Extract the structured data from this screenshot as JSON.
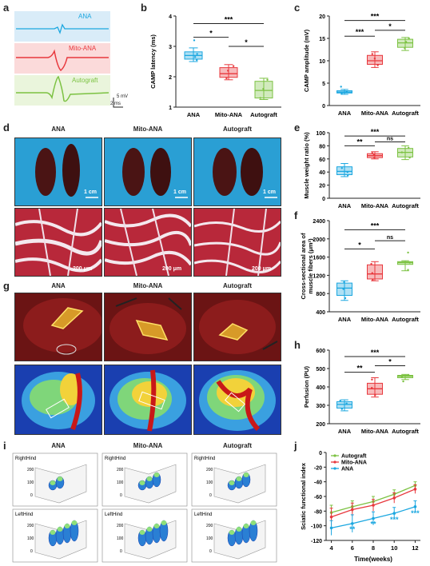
{
  "panels": {
    "a": "a",
    "b": "b",
    "c": "c",
    "d": "d",
    "e": "e",
    "f": "f",
    "g": "g",
    "h": "h",
    "i": "i",
    "j": "j"
  },
  "panel_a": {
    "traces": [
      {
        "label": "ANA",
        "color": "#1ba7e0",
        "bg": "#d9ecf8"
      },
      {
        "label": "Mito-ANA",
        "color": "#e8383d",
        "bg": "#fbdada"
      },
      {
        "label": "Autograft",
        "color": "#7cc242",
        "bg": "#eaf5dc"
      }
    ],
    "scale_v": "5 mV",
    "scale_t": "2 ms"
  },
  "group_labels": [
    "ANA",
    "Mito-ANA",
    "Autograft"
  ],
  "photo_scale": {
    "cm": "1 cm",
    "um": "200 μm"
  },
  "panel_i": {
    "right": "RightHind",
    "left": "LeftHind"
  },
  "colors": {
    "ana": "#1ba7e0",
    "mito": "#e8383d",
    "auto": "#7cc242"
  },
  "chart_data": [
    {
      "id": "b",
      "type": "box",
      "ylabel": "CAMP latency (ms)",
      "categories": [
        "ANA",
        "Mito-ANA",
        "Autograft"
      ],
      "ylim": [
        1,
        4
      ],
      "yticks": [
        1,
        2,
        3,
        4
      ],
      "boxes": [
        {
          "min": 2.5,
          "q1": 2.58,
          "median": 2.7,
          "q3": 2.82,
          "max": 2.95,
          "points": [
            2.55,
            2.65,
            2.75,
            3.2
          ]
        },
        {
          "min": 1.9,
          "q1": 1.98,
          "median": 2.1,
          "q3": 2.3,
          "max": 2.4,
          "points": [
            1.95,
            2.2,
            2.35
          ]
        },
        {
          "min": 1.25,
          "q1": 1.3,
          "median": 1.55,
          "q3": 1.85,
          "max": 1.95,
          "points": [
            1.3,
            1.6,
            1.9
          ]
        }
      ],
      "sig": [
        {
          "from": 0,
          "to": 2,
          "label": "***",
          "y": 3.75
        },
        {
          "from": 0,
          "to": 1,
          "label": "*",
          "y": 3.3
        },
        {
          "from": 1,
          "to": 2,
          "label": "*",
          "y": 3.0
        }
      ]
    },
    {
      "id": "c",
      "type": "box",
      "ylabel": "CAMP amplitude (mV)",
      "categories": [
        "ANA",
        "Mito-ANA",
        "Autograft"
      ],
      "ylim": [
        0,
        20
      ],
      "yticks": [
        0,
        5,
        10,
        15,
        20
      ],
      "boxes": [
        {
          "min": 2.5,
          "q1": 2.8,
          "median": 3.0,
          "q3": 3.3,
          "max": 3.6,
          "points": [
            2.7,
            3.1,
            4.2
          ]
        },
        {
          "min": 8.5,
          "q1": 9.2,
          "median": 10.0,
          "q3": 11.2,
          "max": 12.0,
          "points": [
            9.0,
            10.5,
            11.5
          ]
        },
        {
          "min": 12.3,
          "q1": 13.0,
          "median": 14.0,
          "q3": 14.8,
          "max": 15.2,
          "points": [
            12.8,
            14.2,
            15.0
          ]
        }
      ],
      "sig": [
        {
          "from": 0,
          "to": 2,
          "label": "***",
          "y": 19.0
        },
        {
          "from": 0,
          "to": 1,
          "label": "***",
          "y": 15.5
        },
        {
          "from": 1,
          "to": 2,
          "label": "*",
          "y": 16.8
        }
      ]
    },
    {
      "id": "e",
      "type": "box",
      "ylabel": "Muscle weight ratio (%)",
      "categories": [
        "ANA",
        "Mito-ANA",
        "Autograft"
      ],
      "ylim": [
        0,
        100
      ],
      "yticks": [
        0,
        20,
        40,
        60,
        80,
        100
      ],
      "boxes": [
        {
          "min": 33,
          "q1": 36,
          "median": 41,
          "q3": 48,
          "max": 53,
          "points": [
            35,
            40,
            46
          ]
        },
        {
          "min": 60,
          "q1": 62,
          "median": 65,
          "q3": 68,
          "max": 71,
          "points": [
            62,
            66,
            69
          ]
        },
        {
          "min": 59,
          "q1": 63,
          "median": 70,
          "q3": 76,
          "max": 80,
          "points": [
            62,
            70,
            77
          ]
        }
      ],
      "sig": [
        {
          "from": 0,
          "to": 2,
          "label": "***",
          "y": 95
        },
        {
          "from": 0,
          "to": 1,
          "label": "**",
          "y": 80
        },
        {
          "from": 1,
          "to": 2,
          "label": "ns",
          "y": 86
        }
      ]
    },
    {
      "id": "f",
      "type": "box",
      "ylabel": "Cross-sectional area of muscle fibers (μm²)",
      "categories": [
        "ANA",
        "Mito-ANA",
        "Autograft"
      ],
      "ylim": [
        400,
        2400
      ],
      "yticks": [
        400,
        800,
        1200,
        1600,
        2000,
        2400
      ],
      "boxes": [
        {
          "min": 650,
          "q1": 760,
          "median": 920,
          "q3": 1030,
          "max": 1080,
          "points": [
            700,
            900,
            1050
          ]
        },
        {
          "min": 1080,
          "q1": 1120,
          "median": 1230,
          "q3": 1430,
          "max": 1500,
          "points": [
            1100,
            1250,
            1450
          ]
        },
        {
          "min": 1300,
          "q1": 1440,
          "median": 1480,
          "q3": 1500,
          "max": 1520,
          "points": [
            1320,
            1480,
            1700
          ]
        }
      ],
      "sig": [
        {
          "from": 0,
          "to": 2,
          "label": "***",
          "y": 2200
        },
        {
          "from": 0,
          "to": 1,
          "label": "*",
          "y": 1780
        },
        {
          "from": 1,
          "to": 2,
          "label": "ns",
          "y": 1960
        }
      ]
    },
    {
      "id": "h",
      "type": "box",
      "ylabel": "Perfusion (PU)",
      "categories": [
        "ANA",
        "Mito-ANA",
        "Autograft"
      ],
      "ylim": [
        200,
        600
      ],
      "yticks": [
        200,
        300,
        400,
        500,
        600
      ],
      "boxes": [
        {
          "min": 270,
          "q1": 285,
          "median": 305,
          "q3": 320,
          "max": 330,
          "points": [
            280,
            310,
            325
          ]
        },
        {
          "min": 345,
          "q1": 360,
          "median": 390,
          "q3": 420,
          "max": 450,
          "points": [
            355,
            395,
            440
          ]
        },
        {
          "min": 440,
          "q1": 450,
          "median": 458,
          "q3": 463,
          "max": 468,
          "points": [
            430,
            455,
            465
          ]
        }
      ],
      "sig": [
        {
          "from": 0,
          "to": 2,
          "label": "***",
          "y": 565
        },
        {
          "from": 0,
          "to": 1,
          "label": "**",
          "y": 480
        },
        {
          "from": 1,
          "to": 2,
          "label": "*",
          "y": 515
        }
      ]
    },
    {
      "id": "j",
      "type": "line",
      "xlabel": "Time(weeks)",
      "ylabel": "Sciatic functional index",
      "x": [
        4,
        6,
        8,
        10,
        12
      ],
      "xlim": [
        3.5,
        12.5
      ],
      "ylim": [
        -120,
        0
      ],
      "xticks": [
        4,
        6,
        8,
        10,
        12
      ],
      "yticks": [
        -120,
        -100,
        -80,
        -60,
        -40,
        -20,
        0
      ],
      "series": [
        {
          "name": "Autograft",
          "color": "#7cc242",
          "values": [
            -82,
            -74,
            -67,
            -57,
            -45
          ],
          "err": [
            10,
            8,
            7,
            6,
            5
          ]
        },
        {
          "name": "Mito-ANA",
          "color": "#e8383d",
          "values": [
            -88,
            -78,
            -72,
            -62,
            -50
          ],
          "err": [
            12,
            9,
            8,
            7,
            6
          ]
        },
        {
          "name": "ANA",
          "color": "#1ba7e0",
          "values": [
            -103,
            -97,
            -90,
            -83,
            -74
          ],
          "err": [
            10,
            12,
            9,
            8,
            8
          ]
        }
      ],
      "stars": [
        {
          "x": 6,
          "label": "**",
          "y": -108
        },
        {
          "x": 8,
          "label": "**",
          "y": -101
        },
        {
          "x": 10,
          "label": "***",
          "y": -95
        },
        {
          "x": 12,
          "label": "***",
          "y": -86
        }
      ],
      "legend": "top-left"
    }
  ]
}
